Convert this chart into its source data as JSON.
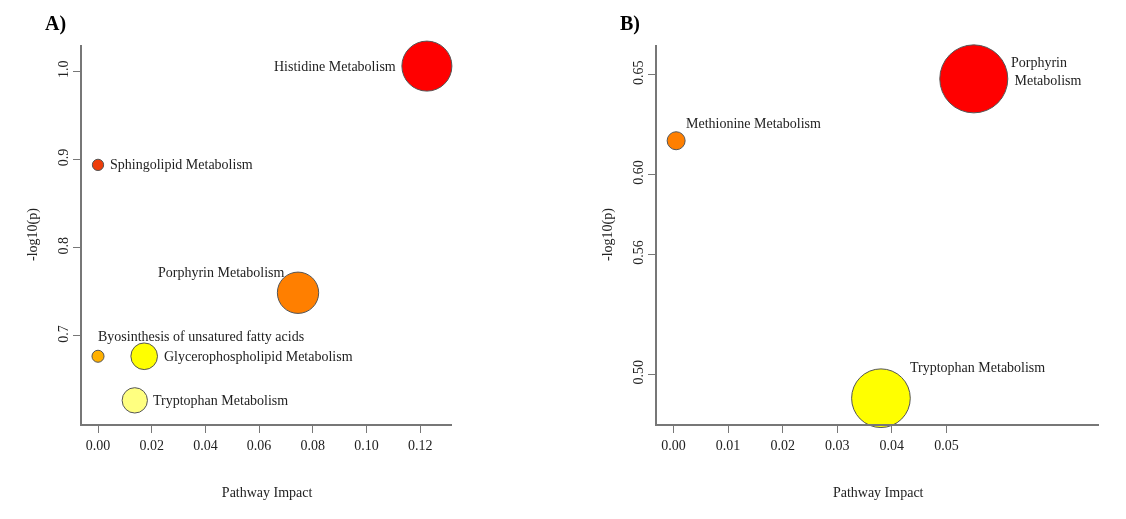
{
  "chart_data": [
    {
      "type": "bubble",
      "title": "A)",
      "xlabel": "Pathway Impact",
      "ylabel": "-log10(p)",
      "x": [
        0.1225,
        0.0,
        0.0745,
        0.0,
        0.0172,
        0.0137
      ],
      "values": [
        1.006,
        0.894,
        0.749,
        0.677,
        0.677,
        0.627
      ],
      "sizes": [
        1,
        0.051,
        0.683,
        0.058,
        0.284,
        0.257
      ],
      "colors": [
        "#ff0000",
        "#ee3d0a",
        "#ff7f00",
        "#ffb000",
        "#ffff00",
        "#ffff80"
      ],
      "xlim": [
        -0.006,
        0.132
      ],
      "ylim": [
        0.6,
        1.03
      ],
      "xticks": [
        {
          "value": 0,
          "label": "0.00"
        },
        {
          "value": 0.02,
          "label": "0.02"
        },
        {
          "value": 0.04,
          "label": "0.04"
        },
        {
          "value": 0.06,
          "label": "0.06"
        },
        {
          "value": 0.08,
          "label": "0.08"
        },
        {
          "value": 0.1,
          "label": "0.10"
        },
        {
          "value": 0.12,
          "label": "0.12"
        }
      ],
      "yticks": [
        0.7,
        0.8,
        0.9,
        {
          "value": 1.0,
          "label": "1.0"
        }
      ],
      "annotations": [
        {
          "text": "Histidine Metabolism",
          "x": 0.1225,
          "y": 1.006
        },
        {
          "text": "Sphingolipid Metabolism",
          "x": 0.0,
          "y": 0.894
        },
        {
          "text": "Porphyrin Metabolism",
          "x": 0.0745,
          "y": 0.749
        },
        {
          "text": "Byosinthesis of unsatured fatty acids",
          "x": 0.0,
          "y": 0.677
        },
        {
          "text": "Glycerophospholipid Metabolism",
          "x": 0.0172,
          "y": 0.677
        },
        {
          "text": "Tryptophan Metabolism",
          "x": 0.0137,
          "y": 0.627
        }
      ]
    },
    {
      "type": "bubble",
      "title": "B)",
      "xlabel": "Pathway Impact",
      "ylabel": "-log10(p)",
      "x": [
        0.055,
        0.0005,
        0.038
      ],
      "values": [
        0.648,
        0.617,
        0.488
      ],
      "sizes": [
        1,
        0.07,
        0.744
      ],
      "colors": [
        "#ff0000",
        "#ff7f00",
        "#ffff00"
      ],
      "xlim": [
        -0.003,
        0.078
      ],
      "ylim": [
        0.475,
        0.665
      ],
      "xticks": [
        {
          "value": 0,
          "label": "0.00"
        },
        0.01,
        0.02,
        0.03,
        0.04,
        0.05
      ],
      "yticks": [
        {
          "value": 0.5,
          "label": "0.50"
        },
        0.56,
        {
          "value": 0.6,
          "label": "0.60"
        },
        0.65
      ],
      "annotations": [
        {
          "text": "Porphyrin\n Metabolism",
          "x": 0.055,
          "y": 0.648
        },
        {
          "text": "Methionine Metabolism",
          "x": 0.0005,
          "y": 0.617
        },
        {
          "text": "Tryptophan Metabolism",
          "x": 0.038,
          "y": 0.488
        }
      ]
    }
  ]
}
